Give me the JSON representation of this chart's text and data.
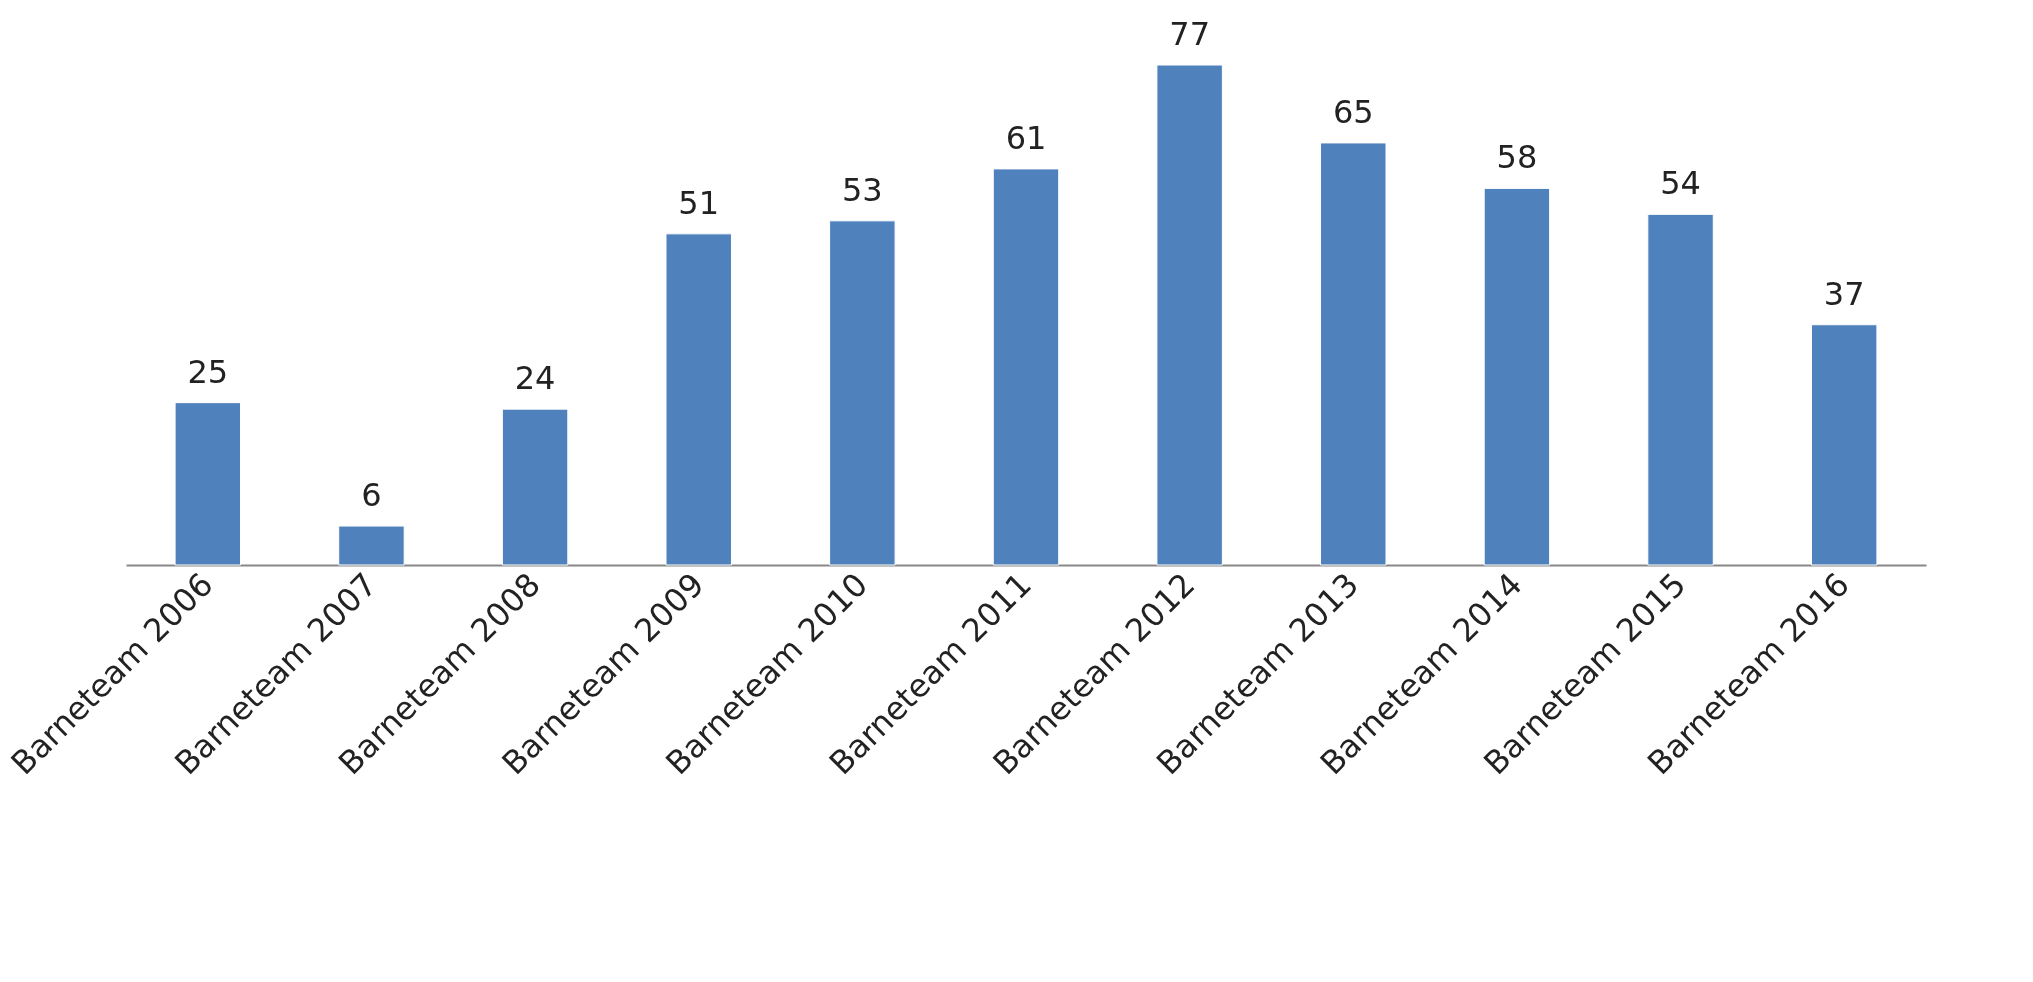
{
  "chart_data": {
    "type": "bar",
    "categories": [
      "Barneteam 2006",
      "Barneteam 2007",
      "Barneteam 2008",
      "Barneteam 2009",
      "Barneteam 2010",
      "Barneteam 2011",
      "Barneteam 2012",
      "Barneteam 2013",
      "Barneteam 2014",
      "Barneteam 2015",
      "Barneteam 2016"
    ],
    "values": [
      25,
      6,
      24,
      51,
      53,
      61,
      77,
      65,
      58,
      54,
      37
    ],
    "color": "#4f81bd",
    "data_labels": true
  }
}
